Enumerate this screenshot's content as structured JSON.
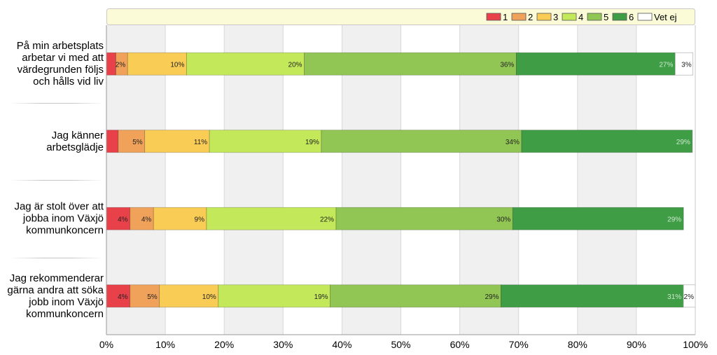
{
  "chart_data": {
    "type": "bar",
    "orientation": "horizontal",
    "stacked": true,
    "categories": [
      "På min arbetsplats arbetar vi med att värdegrunden följs och hålls vid liv",
      "Jag känner arbetsglädje",
      "Jag är stolt över att jobba inom Växjö kommunkoncern",
      "Jag rekommenderar gärna andra att söka jobb inom Växjö kommunkoncern"
    ],
    "category_lines": [
      [
        "På min arbetsplats",
        "arbetar vi med att",
        "värdegrunden följs",
        "och hålls vid liv"
      ],
      [
        "Jag känner",
        "arbetsglädje"
      ],
      [
        "Jag är stolt över att",
        "jobba inom Växjö",
        "kommunkoncern"
      ],
      [
        "Jag rekommenderar",
        "gärna andra att söka",
        "jobb inom Växjö",
        "kommunkoncern"
      ]
    ],
    "series": [
      {
        "name": "1",
        "color": "#e8414a",
        "values": [
          1.6,
          2.0,
          4,
          4
        ],
        "labels": [
          "",
          "",
          "4%",
          "4%"
        ]
      },
      {
        "name": "2",
        "color": "#f0a25a",
        "values": [
          2,
          4.5,
          4,
          5
        ],
        "labels": [
          "2%",
          "5%",
          "4%",
          "5%"
        ]
      },
      {
        "name": "3",
        "color": "#f8cc55",
        "values": [
          10,
          11,
          9,
          10
        ],
        "labels": [
          "10%",
          "11%",
          "9%",
          "10%"
        ]
      },
      {
        "name": "4",
        "color": "#c3e95a",
        "values": [
          20,
          19,
          22,
          19
        ],
        "labels": [
          "20%",
          "19%",
          "22%",
          "19%"
        ]
      },
      {
        "name": "5",
        "color": "#91c654",
        "values": [
          36,
          34,
          30,
          29
        ],
        "labels": [
          "36%",
          "34%",
          "30%",
          "29%"
        ]
      },
      {
        "name": "6",
        "color": "#3f9e45",
        "values": [
          27,
          29,
          29,
          31
        ],
        "labels": [
          "27%",
          "29%",
          "29%",
          "31%"
        ]
      },
      {
        "name": "Vet ej",
        "color": "#ffffff",
        "values": [
          3,
          0,
          0,
          2
        ],
        "labels": [
          "3%",
          "",
          "",
          "2%"
        ]
      }
    ],
    "x_ticks": [
      "0%",
      "10%",
      "20%",
      "30%",
      "40%",
      "50%",
      "60%",
      "70%",
      "80%",
      "90%",
      "100%"
    ],
    "xlim": [
      0,
      100
    ],
    "grid": true,
    "legend_position": "top-right"
  }
}
